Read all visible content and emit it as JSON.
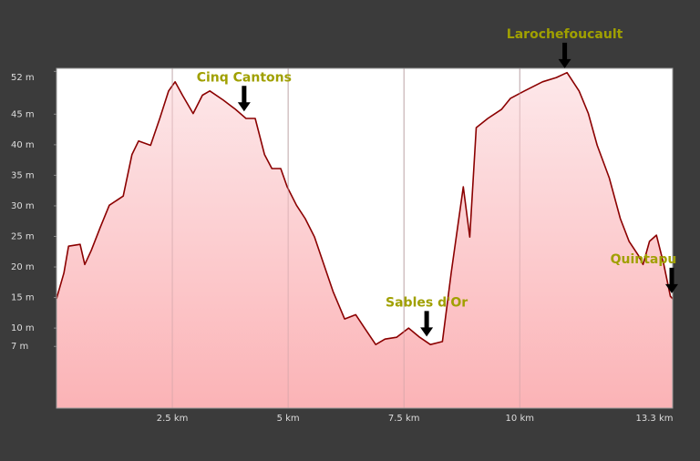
{
  "chart_data": {
    "type": "area",
    "x": [
      0,
      0.16,
      0.26,
      0.51,
      0.61,
      0.75,
      0.94,
      1.14,
      1.44,
      1.63,
      1.77,
      2.03,
      2.23,
      2.42,
      2.56,
      2.72,
      2.95,
      3.15,
      3.31,
      3.6,
      3.86,
      4.09,
      4.29,
      4.49,
      4.65,
      4.84,
      4.98,
      5.18,
      5.37,
      5.57,
      5.77,
      5.97,
      6.22,
      6.46,
      6.65,
      6.89,
      7.09,
      7.34,
      7.6,
      7.84,
      8.07,
      8.33,
      8.52,
      8.78,
      8.92,
      9.06,
      9.31,
      9.61,
      9.8,
      10.1,
      10.49,
      10.79,
      11.02,
      11.28,
      11.48,
      11.67,
      11.93,
      12.17,
      12.36,
      12.56,
      12.66,
      12.8,
      12.95,
      13.11,
      13.25,
      13.3
    ],
    "values": [
      14.8,
      19,
      23.4,
      23.7,
      20.4,
      22.7,
      26.4,
      30.1,
      31.6,
      38.4,
      40.6,
      39.9,
      44.3,
      48.8,
      50.3,
      48.1,
      45.1,
      48.1,
      48.8,
      47.3,
      45.8,
      44.3,
      44.3,
      38.4,
      36.1,
      36.1,
      33.1,
      30.1,
      27.9,
      24.9,
      20.4,
      16,
      11.5,
      12.2,
      10,
      7.3,
      8.2,
      8.5,
      10,
      8.5,
      7.3,
      7.8,
      19,
      33.1,
      24.9,
      42.8,
      44.3,
      45.8,
      47.6,
      48.8,
      50.3,
      51,
      51.8,
      48.8,
      45.1,
      39.9,
      34.6,
      27.9,
      24.2,
      21.9,
      20.4,
      24.2,
      25.2,
      20.4,
      15.2,
      14.8
    ],
    "color": "#8b0000",
    "xlim": [
      0,
      13.3
    ],
    "xticks": [
      {
        "value": 2.5,
        "label": "2.5 km"
      },
      {
        "value": 5,
        "label": "5 km"
      },
      {
        "value": 7.5,
        "label": "7.5 km"
      },
      {
        "value": 10,
        "label": "10 km"
      },
      {
        "value": 13.3,
        "label": "13.3 km"
      }
    ],
    "ylim": [
      -3.1,
      52.5
    ],
    "yticks": [
      {
        "value": 7,
        "label": "7 m"
      },
      {
        "value": 10,
        "label": "10 m"
      },
      {
        "value": 15,
        "label": "15 m"
      },
      {
        "value": 20,
        "label": "20 m"
      },
      {
        "value": 25,
        "label": "25 m"
      },
      {
        "value": 30,
        "label": "30 m"
      },
      {
        "value": 35,
        "label": "35 m"
      },
      {
        "value": 40,
        "label": "40 m"
      },
      {
        "value": 45,
        "label": "45 m"
      },
      {
        "value": 52,
        "label": "52 m"
      }
    ],
    "annotations": [
      {
        "text": "Cinq Cantons",
        "x": 4.05
      },
      {
        "text": "Larochefoucault",
        "x": 10.97
      },
      {
        "text": "Sables d'Or",
        "x": 7.99
      },
      {
        "text": "Quintapu",
        "x": 13.31
      }
    ]
  }
}
